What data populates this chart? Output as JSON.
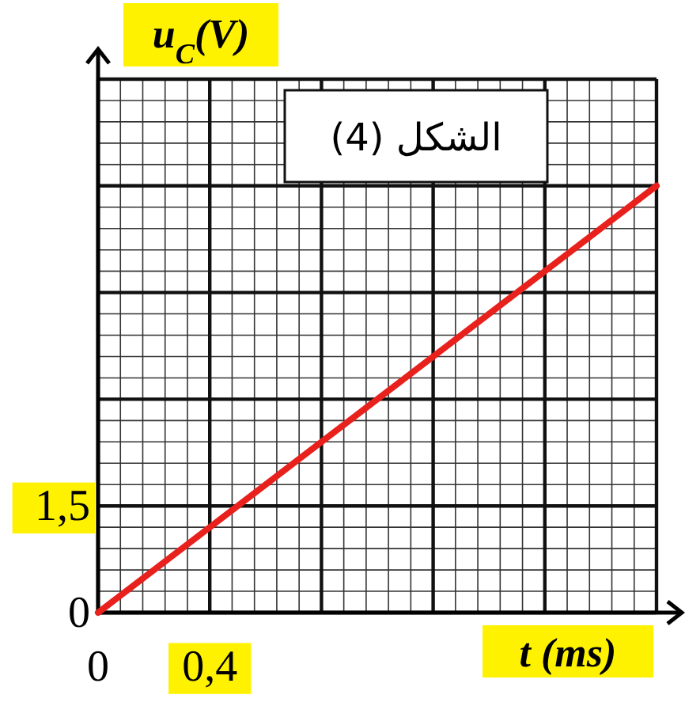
{
  "chart_data": {
    "type": "line",
    "title": "الشكل (4)",
    "xlabel": "t (ms)",
    "ylabel": "u$_{C}$(V)",
    "xlim": [
      0,
      2
    ],
    "ylim": [
      0,
      7.5
    ],
    "xticks": [
      {
        "value": 0,
        "label": "0"
      },
      {
        "value": 0.4,
        "label": "0,4"
      },
      {
        "value": 0.8,
        "label": null
      },
      {
        "value": 1.2,
        "label": null
      },
      {
        "value": 1.6,
        "label": null
      },
      {
        "value": 2,
        "label": null
      }
    ],
    "yticks": [
      {
        "value": 0,
        "label": "0"
      },
      {
        "value": 1.5,
        "label": "1,5"
      },
      {
        "value": 3,
        "label": null
      },
      {
        "value": 4.5,
        "label": null
      },
      {
        "value": 6,
        "label": null
      },
      {
        "value": 7.5,
        "label": null
      }
    ],
    "grid": true,
    "marker": "none",
    "line_style": "solid",
    "series": [
      {
        "color": "#e8211d",
        "x": [
          0,
          2
        ],
        "values": [
          0,
          6
        ]
      }
    ]
  }
}
